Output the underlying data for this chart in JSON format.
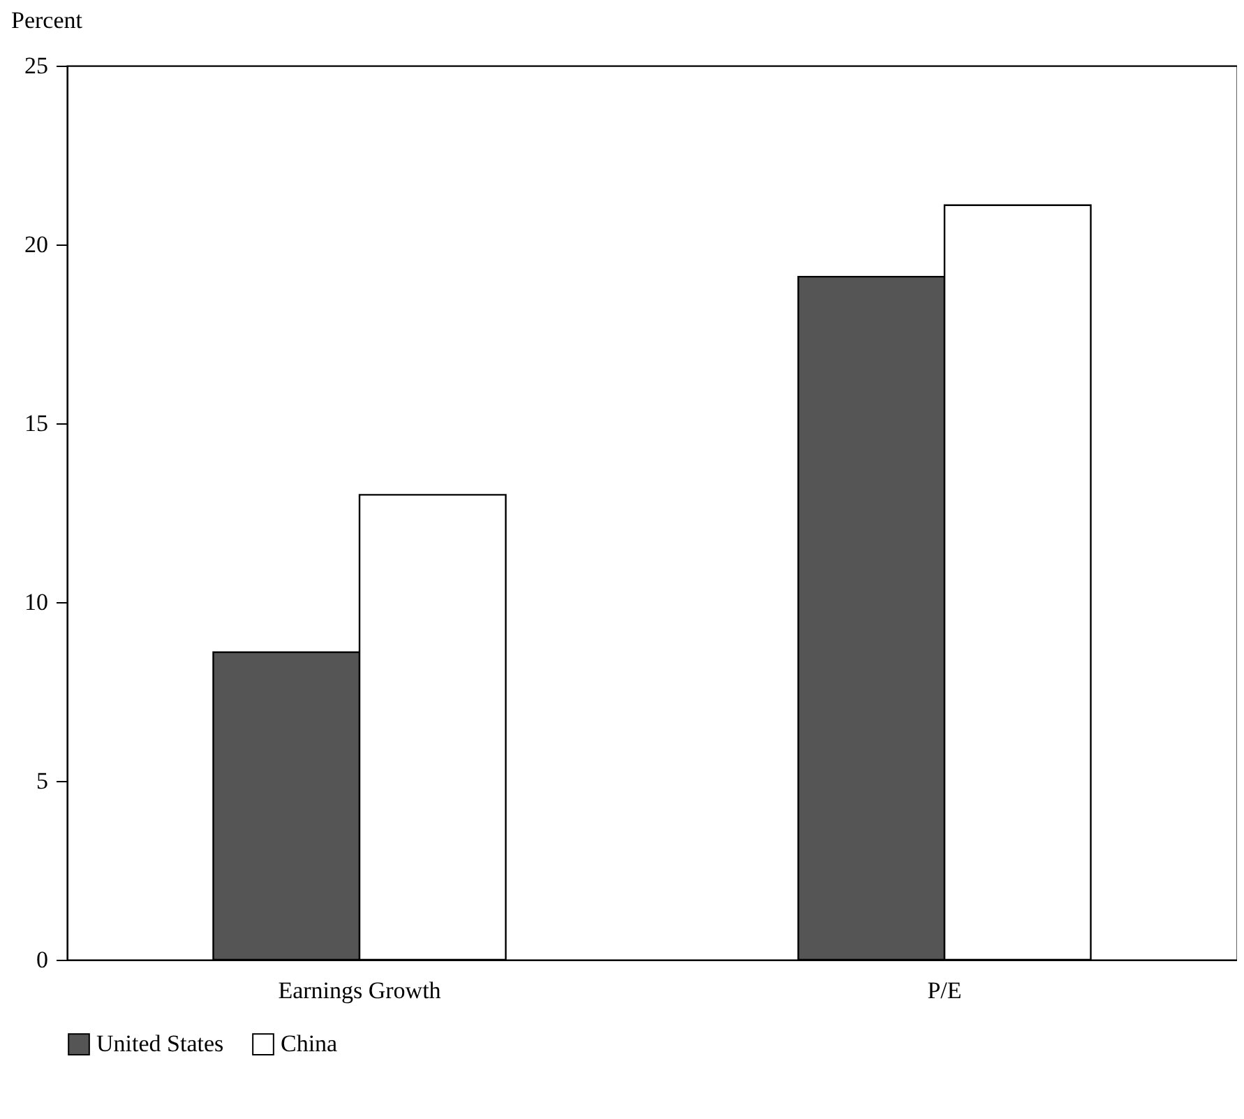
{
  "chart_data": {
    "type": "bar",
    "ylabel": "Percent",
    "categories": [
      "Earnings Growth",
      "P/E"
    ],
    "series": [
      {
        "name": "United States",
        "color": "#555555",
        "values": [
          8.6,
          19.1
        ]
      },
      {
        "name": "China",
        "color": "#ffffff",
        "values": [
          13.0,
          21.1
        ]
      }
    ],
    "ylim": [
      0,
      25
    ],
    "yticks": [
      0,
      5,
      10,
      15,
      20,
      25
    ],
    "grid": false,
    "legend": "bottom"
  }
}
